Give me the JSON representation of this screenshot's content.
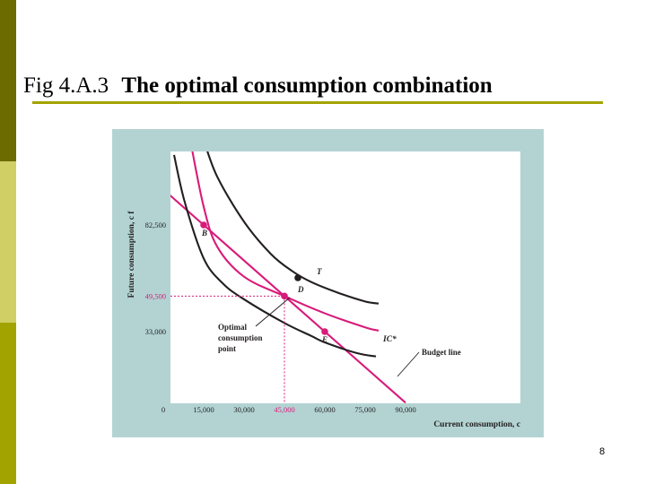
{
  "slide": {
    "title_number": "Fig 4.A.3",
    "title_text": "The optimal consumption combination",
    "page_number": "8"
  },
  "colors": {
    "side_band_dark": "#6b6b00",
    "side_band_light": "#cfcf66",
    "side_band_mid": "#a3a300",
    "title_rule": "#a3a300",
    "figure_background": "#b3d3d3",
    "plot_background": "#ffffff",
    "magenta": "#d81b7a",
    "black_curve": "#231f20"
  },
  "chart_data": {
    "type": "line",
    "title": "",
    "xlabel": "Current consumption, c",
    "ylabel": "Future consumption, c f",
    "xlim": [
      0,
      100000
    ],
    "ylim": [
      0,
      135000
    ],
    "x_ticks": [
      "0",
      "15,000",
      "30,000",
      "45,000",
      "60,000",
      "75,000",
      "90,000"
    ],
    "x_tick_values": [
      0,
      15000,
      30000,
      45000,
      60000,
      75000,
      90000
    ],
    "y_ticks": [
      "33,000",
      "49,500",
      "82,500"
    ],
    "y_tick_values": [
      33000,
      49500,
      82500
    ],
    "highlighted_ticks": [
      "45,000",
      "49,500"
    ],
    "grid": false,
    "series": [
      {
        "name": "Budget line",
        "color": "#d81b7a",
        "x": [
          0,
          15000,
          30000,
          45000,
          60000,
          75000,
          90000
        ],
        "y": [
          99000,
          82500,
          66000,
          49500,
          33000,
          16500,
          0
        ]
      },
      {
        "name": "IC*",
        "color": "#d81b7a",
        "x": [
          10000,
          15000,
          20000,
          30000,
          45000,
          60000,
          75000,
          80000
        ],
        "y": [
          122000,
          91000,
          72500,
          58500,
          49500,
          41500,
          35000,
          33500
        ]
      },
      {
        "name": "",
        "color": "#231f20",
        "x": [
          4000,
          8000,
          15000,
          22000,
          30000,
          45000,
          55000,
          60000,
          72000,
          79000
        ],
        "y": [
          115000,
          93000,
          67000,
          55500,
          48000,
          37000,
          31000,
          28000,
          23000,
          21500
        ]
      },
      {
        "name": "",
        "color": "#231f20",
        "x": [
          15000,
          20000,
          30000,
          40000,
          48000,
          55000,
          65000,
          75000,
          80000
        ],
        "y": [
          122000,
          105000,
          84000,
          69000,
          61000,
          56000,
          51000,
          47000,
          46000
        ]
      }
    ],
    "points": [
      {
        "label": "B",
        "x": 15000,
        "y": 82500,
        "color": "#d81b7a"
      },
      {
        "label": "D",
        "x": 45000,
        "y": 49500,
        "color": "#d81b7a"
      },
      {
        "label": "E",
        "x": 60000,
        "y": 33000,
        "color": "#d81b7a"
      },
      {
        "label": "T",
        "x": 50000,
        "y": 58000,
        "color": "#231f20"
      }
    ],
    "annotations": [
      {
        "id": "optimal",
        "text_lines": [
          "Optimal",
          "consumption",
          "point"
        ]
      },
      {
        "id": "budget",
        "text": "Budget line"
      },
      {
        "id": "ic_label",
        "text": "IC*"
      }
    ]
  }
}
